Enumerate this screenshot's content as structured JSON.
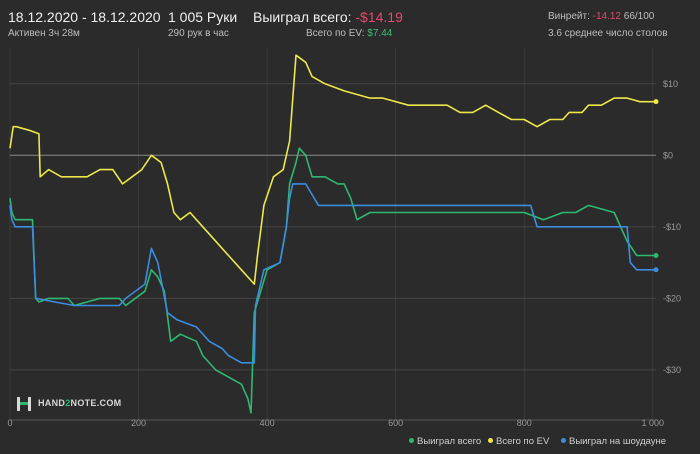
{
  "header": {
    "date_range": "18.12.2020 - 18.12.2020",
    "active": "Активен 3ч 28м",
    "hands": "1 005 Руки",
    "hands_per_hour": "290 рук в час",
    "won_total_label": "Выиграл всего:",
    "won_total_value": "-$14.19",
    "ev_total_label": "Всего по EV:",
    "ev_total_value": "$7.44",
    "winrate_label": "Винрейт:",
    "winrate_value": "-14.12",
    "winrate_count": "66/100",
    "avg_tables": "3.6 среднее число столов"
  },
  "logo": {
    "text_a": "HAND",
    "text_b": "2",
    "text_c": "NOTE.COM"
  },
  "colors": {
    "won": "#2eb872",
    "ev": "#ece84a",
    "showdown": "#3c8de0",
    "negative": "#e24a6e",
    "positive": "#3dbf73"
  },
  "chart_data": {
    "type": "line",
    "xlim": [
      0,
      1005
    ],
    "ylim": [
      -37,
      15
    ],
    "x_ticks": [
      0,
      200,
      400,
      600,
      800,
      1000
    ],
    "x_tick_labels": [
      "0",
      "200",
      "400",
      "600",
      "800",
      "1 000"
    ],
    "y_ticks": [
      10,
      0,
      -10,
      -20,
      -30
    ],
    "y_tick_labels": [
      "$10",
      "$0",
      "-$10",
      "-$20",
      "-$30"
    ],
    "legend_position": "bottom-right",
    "series": [
      {
        "name": "Выиграл всего",
        "color": "#2eb872",
        "points": [
          [
            0,
            -6
          ],
          [
            3,
            -8
          ],
          [
            8,
            -9
          ],
          [
            20,
            -9
          ],
          [
            35,
            -9
          ],
          [
            40,
            -20
          ],
          [
            45,
            -20.5
          ],
          [
            60,
            -20
          ],
          [
            90,
            -20
          ],
          [
            100,
            -21
          ],
          [
            140,
            -20
          ],
          [
            170,
            -20
          ],
          [
            180,
            -21
          ],
          [
            210,
            -19
          ],
          [
            220,
            -16
          ],
          [
            230,
            -17
          ],
          [
            240,
            -19
          ],
          [
            250,
            -26
          ],
          [
            265,
            -25
          ],
          [
            290,
            -26
          ],
          [
            300,
            -28
          ],
          [
            320,
            -30
          ],
          [
            340,
            -31
          ],
          [
            360,
            -32
          ],
          [
            370,
            -34
          ],
          [
            375,
            -36
          ],
          [
            380,
            -22
          ],
          [
            390,
            -19
          ],
          [
            400,
            -16
          ],
          [
            420,
            -15
          ],
          [
            430,
            -10
          ],
          [
            435,
            -4
          ],
          [
            445,
            -1
          ],
          [
            450,
            1
          ],
          [
            460,
            0
          ],
          [
            470,
            -3
          ],
          [
            490,
            -3
          ],
          [
            510,
            -4
          ],
          [
            520,
            -4
          ],
          [
            530,
            -6
          ],
          [
            540,
            -9
          ],
          [
            560,
            -8
          ],
          [
            580,
            -8
          ],
          [
            620,
            -8
          ],
          [
            640,
            -8
          ],
          [
            660,
            -8
          ],
          [
            690,
            -8
          ],
          [
            720,
            -8
          ],
          [
            760,
            -8
          ],
          [
            800,
            -8
          ],
          [
            830,
            -9
          ],
          [
            860,
            -8
          ],
          [
            880,
            -8
          ],
          [
            900,
            -7
          ],
          [
            940,
            -8
          ],
          [
            960,
            -12
          ],
          [
            975,
            -14
          ],
          [
            1005,
            -14
          ]
        ]
      },
      {
        "name": "Всего по EV",
        "color": "#ece84a",
        "points": [
          [
            0,
            1
          ],
          [
            5,
            4
          ],
          [
            10,
            4
          ],
          [
            30,
            3.5
          ],
          [
            45,
            3
          ],
          [
            47,
            -3
          ],
          [
            60,
            -2
          ],
          [
            80,
            -3
          ],
          [
            100,
            -3
          ],
          [
            120,
            -3
          ],
          [
            140,
            -2
          ],
          [
            160,
            -2
          ],
          [
            175,
            -4
          ],
          [
            190,
            -3
          ],
          [
            205,
            -2
          ],
          [
            220,
            0
          ],
          [
            235,
            -1
          ],
          [
            245,
            -4
          ],
          [
            255,
            -8
          ],
          [
            265,
            -9
          ],
          [
            280,
            -8
          ],
          [
            300,
            -10
          ],
          [
            320,
            -12
          ],
          [
            340,
            -14
          ],
          [
            360,
            -16
          ],
          [
            380,
            -18
          ],
          [
            385,
            -14
          ],
          [
            395,
            -7
          ],
          [
            410,
            -3
          ],
          [
            425,
            -2
          ],
          [
            435,
            2
          ],
          [
            440,
            8
          ],
          [
            445,
            14
          ],
          [
            460,
            13
          ],
          [
            470,
            11
          ],
          [
            490,
            10
          ],
          [
            520,
            9
          ],
          [
            540,
            8.5
          ],
          [
            560,
            8
          ],
          [
            580,
            8
          ],
          [
            620,
            7
          ],
          [
            650,
            7
          ],
          [
            680,
            7
          ],
          [
            700,
            6
          ],
          [
            720,
            6
          ],
          [
            740,
            7
          ],
          [
            760,
            6
          ],
          [
            780,
            5
          ],
          [
            800,
            5
          ],
          [
            820,
            4
          ],
          [
            840,
            5
          ],
          [
            860,
            5
          ],
          [
            870,
            6
          ],
          [
            890,
            6
          ],
          [
            900,
            7
          ],
          [
            920,
            7
          ],
          [
            940,
            8
          ],
          [
            960,
            8
          ],
          [
            980,
            7.5
          ],
          [
            1005,
            7.5
          ]
        ]
      },
      {
        "name": "Выиграл на шоудауне",
        "color": "#3c8de0",
        "points": [
          [
            0,
            -7
          ],
          [
            3,
            -9
          ],
          [
            8,
            -10
          ],
          [
            35,
            -10
          ],
          [
            40,
            -20
          ],
          [
            70,
            -20.5
          ],
          [
            100,
            -21
          ],
          [
            140,
            -21
          ],
          [
            170,
            -21
          ],
          [
            180,
            -20
          ],
          [
            210,
            -18
          ],
          [
            220,
            -13
          ],
          [
            230,
            -15
          ],
          [
            245,
            -22
          ],
          [
            260,
            -23
          ],
          [
            290,
            -24
          ],
          [
            310,
            -26
          ],
          [
            330,
            -27
          ],
          [
            340,
            -28
          ],
          [
            360,
            -29
          ],
          [
            380,
            -29
          ],
          [
            382,
            -21
          ],
          [
            395,
            -16
          ],
          [
            420,
            -15
          ],
          [
            430,
            -10
          ],
          [
            435,
            -6
          ],
          [
            440,
            -4
          ],
          [
            460,
            -4
          ],
          [
            480,
            -7
          ],
          [
            510,
            -7
          ],
          [
            560,
            -7
          ],
          [
            600,
            -7
          ],
          [
            640,
            -7
          ],
          [
            680,
            -7
          ],
          [
            700,
            -7
          ],
          [
            760,
            -7
          ],
          [
            790,
            -7
          ],
          [
            810,
            -7
          ],
          [
            820,
            -10
          ],
          [
            850,
            -10
          ],
          [
            880,
            -10
          ],
          [
            920,
            -10
          ],
          [
            940,
            -10
          ],
          [
            960,
            -10
          ],
          [
            965,
            -15
          ],
          [
            975,
            -16
          ],
          [
            1005,
            -16
          ]
        ]
      }
    ]
  }
}
